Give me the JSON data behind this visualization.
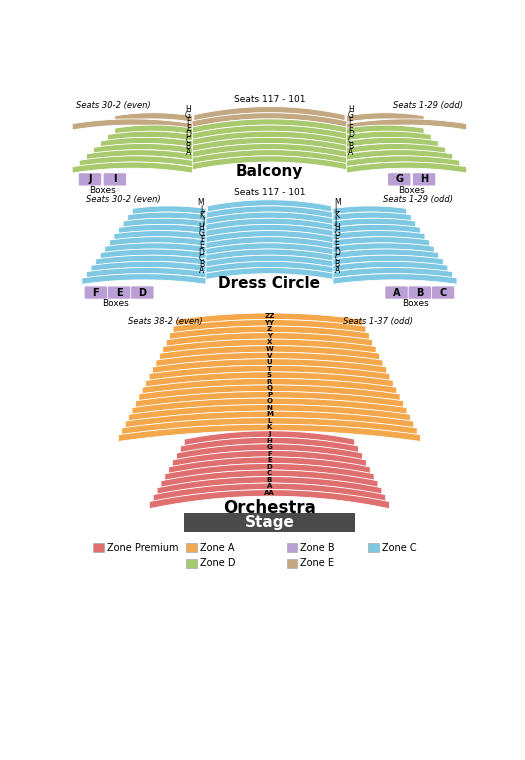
{
  "zone_colors": {
    "Zone Premium": "#e07070",
    "Zone A": "#f5a84b",
    "Zone B": "#b99fd4",
    "Zone C": "#7ec8e3",
    "Zone D": "#a8c96e",
    "Zone E": "#c4a882"
  },
  "stage_color": "#4a4a4a",
  "stage_text_color": "#ffffff",
  "bg_color": "#ffffff",
  "balcony_letters": [
    "H",
    "G",
    "F",
    "E",
    "D",
    "C",
    "B",
    "A"
  ],
  "dc_letters": [
    "M",
    "L",
    "K",
    "J",
    "H",
    "G",
    "F",
    "E",
    "D",
    "C",
    "B",
    "A"
  ],
  "orch_a_letters": [
    "ZZ",
    "YY",
    "Z",
    "Y",
    "X",
    "W",
    "V",
    "U",
    "T",
    "S",
    "R",
    "Q",
    "P",
    "O",
    "N",
    "M",
    "L",
    "K"
  ],
  "orch_prem_letters": [
    "J",
    "H",
    "G",
    "F",
    "E",
    "D",
    "C",
    "B",
    "A",
    "AA"
  ],
  "bal_box_left": [
    "J",
    "I"
  ],
  "bal_box_right": [
    "G",
    "H"
  ],
  "dc_box_left": [
    "F",
    "E",
    "D"
  ],
  "dc_box_right": [
    "A",
    "B",
    "C"
  ]
}
